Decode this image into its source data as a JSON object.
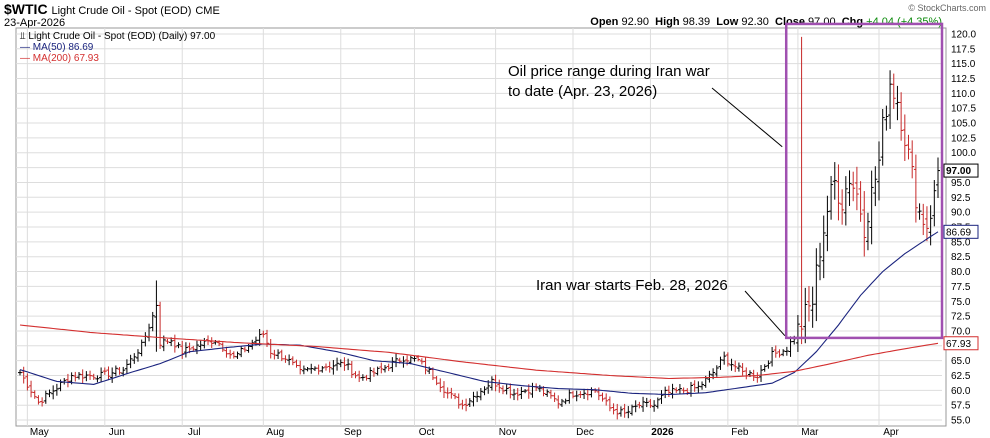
{
  "header": {
    "symbol": "$WTIC",
    "name": "Light Crude Oil - Spot (EOD)",
    "exchange": "CME",
    "date": "23-Apr-2026",
    "open_label": "Open",
    "open": "92.90",
    "high_label": "High",
    "high": "98.39",
    "low_label": "Low",
    "low": "92.30",
    "close_label": "Close",
    "close": "97.00",
    "chg_label": "Chg",
    "chg": "+4.04 (+4.35%)",
    "watermark": "© StockCharts.com"
  },
  "colors": {
    "ma50": "#1a237e",
    "ma200": "#d32f2f",
    "up_bar": "#000000",
    "down_bar": "#c62828",
    "box": "#a050b0",
    "grid": "#dddddd"
  },
  "chart_data": {
    "type": "line",
    "title": "$WTIC Light Crude Oil - Spot (EOD) CME",
    "price_label": "Light Crude Oil - Spot (EOD) (Daily) 97.00",
    "ylim": [
      54,
      121
    ],
    "yticks": [
      55,
      57.5,
      60,
      62.5,
      65,
      67.5,
      70,
      72.5,
      75,
      77.5,
      80,
      82.5,
      85,
      87.5,
      90,
      92.5,
      95,
      97.5,
      100,
      102.5,
      105,
      107.5,
      110,
      112.5,
      115,
      117.5,
      120
    ],
    "x_labels": [
      {
        "label": "May",
        "i": 2
      },
      {
        "label": "Jun",
        "i": 23
      },
      {
        "label": "Jul",
        "i": 44
      },
      {
        "label": "Aug",
        "i": 66
      },
      {
        "label": "Sep",
        "i": 87
      },
      {
        "label": "Oct",
        "i": 107
      },
      {
        "label": "Nov",
        "i": 129
      },
      {
        "label": "Dec",
        "i": 150
      },
      {
        "label": "2026",
        "i": 171
      },
      {
        "label": "Feb",
        "i": 192
      },
      {
        "label": "Mar",
        "i": 211
      },
      {
        "label": "Apr",
        "i": 233
      }
    ],
    "n_days": 250,
    "close_points": [
      [
        0,
        63.0
      ],
      [
        5,
        58.0
      ],
      [
        8,
        59.5
      ],
      [
        14,
        62.5
      ],
      [
        22,
        62.5
      ],
      [
        28,
        63.5
      ],
      [
        33,
        67.5
      ],
      [
        36,
        72.5
      ],
      [
        37,
        74.5
      ],
      [
        38,
        68.0
      ],
      [
        41,
        68.5
      ],
      [
        44,
        66.5
      ],
      [
        50,
        68.0
      ],
      [
        53,
        68.5
      ],
      [
        58,
        65.5
      ],
      [
        62,
        67.5
      ],
      [
        66,
        69.5
      ],
      [
        68,
        66.5
      ],
      [
        72,
        65.5
      ],
      [
        76,
        63.0
      ],
      [
        82,
        64.0
      ],
      [
        88,
        64.5
      ],
      [
        92,
        62.0
      ],
      [
        98,
        63.5
      ],
      [
        104,
        65.5
      ],
      [
        108,
        65.0
      ],
      [
        112,
        62.5
      ],
      [
        116,
        59.5
      ],
      [
        120,
        57.5
      ],
      [
        124,
        59.5
      ],
      [
        128,
        61.5
      ],
      [
        134,
        59.5
      ],
      [
        140,
        60.5
      ],
      [
        146,
        58.0
      ],
      [
        150,
        59.5
      ],
      [
        156,
        60.0
      ],
      [
        160,
        57.0
      ],
      [
        164,
        56.0
      ],
      [
        168,
        57.5
      ],
      [
        172,
        57.5
      ],
      [
        175,
        59.5
      ],
      [
        180,
        60.0
      ],
      [
        184,
        60.5
      ],
      [
        188,
        63.0
      ],
      [
        191,
        65.5
      ],
      [
        196,
        63.0
      ],
      [
        200,
        62.5
      ],
      [
        204,
        66.0
      ],
      [
        208,
        67.0
      ],
      [
        211,
        70.0
      ],
      [
        213,
        72.5
      ],
      [
        215,
        75.0
      ],
      [
        217,
        84.0
      ],
      [
        219,
        90.5
      ],
      [
        221,
        95.0
      ],
      [
        223,
        92.0
      ],
      [
        225,
        96.0
      ],
      [
        227,
        93.0
      ],
      [
        229,
        88.0
      ],
      [
        231,
        93.0
      ],
      [
        233,
        98.5
      ],
      [
        234,
        104.0
      ],
      [
        236,
        112.0
      ],
      [
        238,
        109.0
      ],
      [
        240,
        103.0
      ],
      [
        242,
        96.0
      ],
      [
        244,
        90.0
      ],
      [
        246,
        88.0
      ],
      [
        248,
        92.5
      ],
      [
        249,
        97.0
      ]
    ],
    "spikes": [
      {
        "i": 37,
        "high": 78.5,
        "low": 66.5
      },
      {
        "i": 212,
        "high": 119.5,
        "low": 71.0
      }
    ],
    "series": [
      {
        "name": "MA(50)",
        "value_label": "86.69",
        "points": [
          [
            0,
            63.5
          ],
          [
            10,
            61.5
          ],
          [
            20,
            61.0
          ],
          [
            30,
            63.0
          ],
          [
            38,
            64.5
          ],
          [
            46,
            66.5
          ],
          [
            56,
            67.2
          ],
          [
            66,
            67.8
          ],
          [
            76,
            67.6
          ],
          [
            86,
            66.5
          ],
          [
            96,
            65.0
          ],
          [
            106,
            64.5
          ],
          [
            116,
            63.0
          ],
          [
            126,
            61.5
          ],
          [
            136,
            60.8
          ],
          [
            146,
            60.3
          ],
          [
            156,
            60.1
          ],
          [
            166,
            59.5
          ],
          [
            176,
            59.3
          ],
          [
            186,
            59.6
          ],
          [
            196,
            60.5
          ],
          [
            204,
            61.2
          ],
          [
            210,
            63.0
          ],
          [
            216,
            66.5
          ],
          [
            222,
            71.0
          ],
          [
            228,
            76.0
          ],
          [
            234,
            80.0
          ],
          [
            240,
            83.0
          ],
          [
            246,
            85.5
          ],
          [
            249,
            86.69
          ]
        ]
      },
      {
        "name": "MA(200)",
        "value_label": "67.93",
        "points": [
          [
            0,
            71.0
          ],
          [
            20,
            69.7
          ],
          [
            40,
            68.8
          ],
          [
            60,
            68.0
          ],
          [
            80,
            67.4
          ],
          [
            100,
            66.4
          ],
          [
            120,
            64.8
          ],
          [
            140,
            63.4
          ],
          [
            160,
            62.5
          ],
          [
            176,
            62.0
          ],
          [
            190,
            62.2
          ],
          [
            200,
            62.5
          ],
          [
            210,
            63.2
          ],
          [
            220,
            64.5
          ],
          [
            230,
            65.9
          ],
          [
            240,
            67.0
          ],
          [
            249,
            67.93
          ]
        ]
      }
    ],
    "price_tags": [
      {
        "value": 97.0,
        "label": "97.00"
      },
      {
        "value": 86.69,
        "label": "86.69"
      },
      {
        "value": 67.93,
        "label": "67.93"
      }
    ],
    "box": {
      "i_start": 210,
      "i_end": 249,
      "low": 69.0,
      "high": 120.0
    },
    "annotations": [
      {
        "lines": [
          "Oil price range during Iran war",
          "to date (Apr. 23, 2026)"
        ],
        "arrow_to_i": 210,
        "arrow_to_value": 100.0
      },
      {
        "lines": [
          "Iran war starts Feb. 28, 2026"
        ],
        "arrow_to_i": 208,
        "arrow_to_value": 69.2
      }
    ]
  }
}
